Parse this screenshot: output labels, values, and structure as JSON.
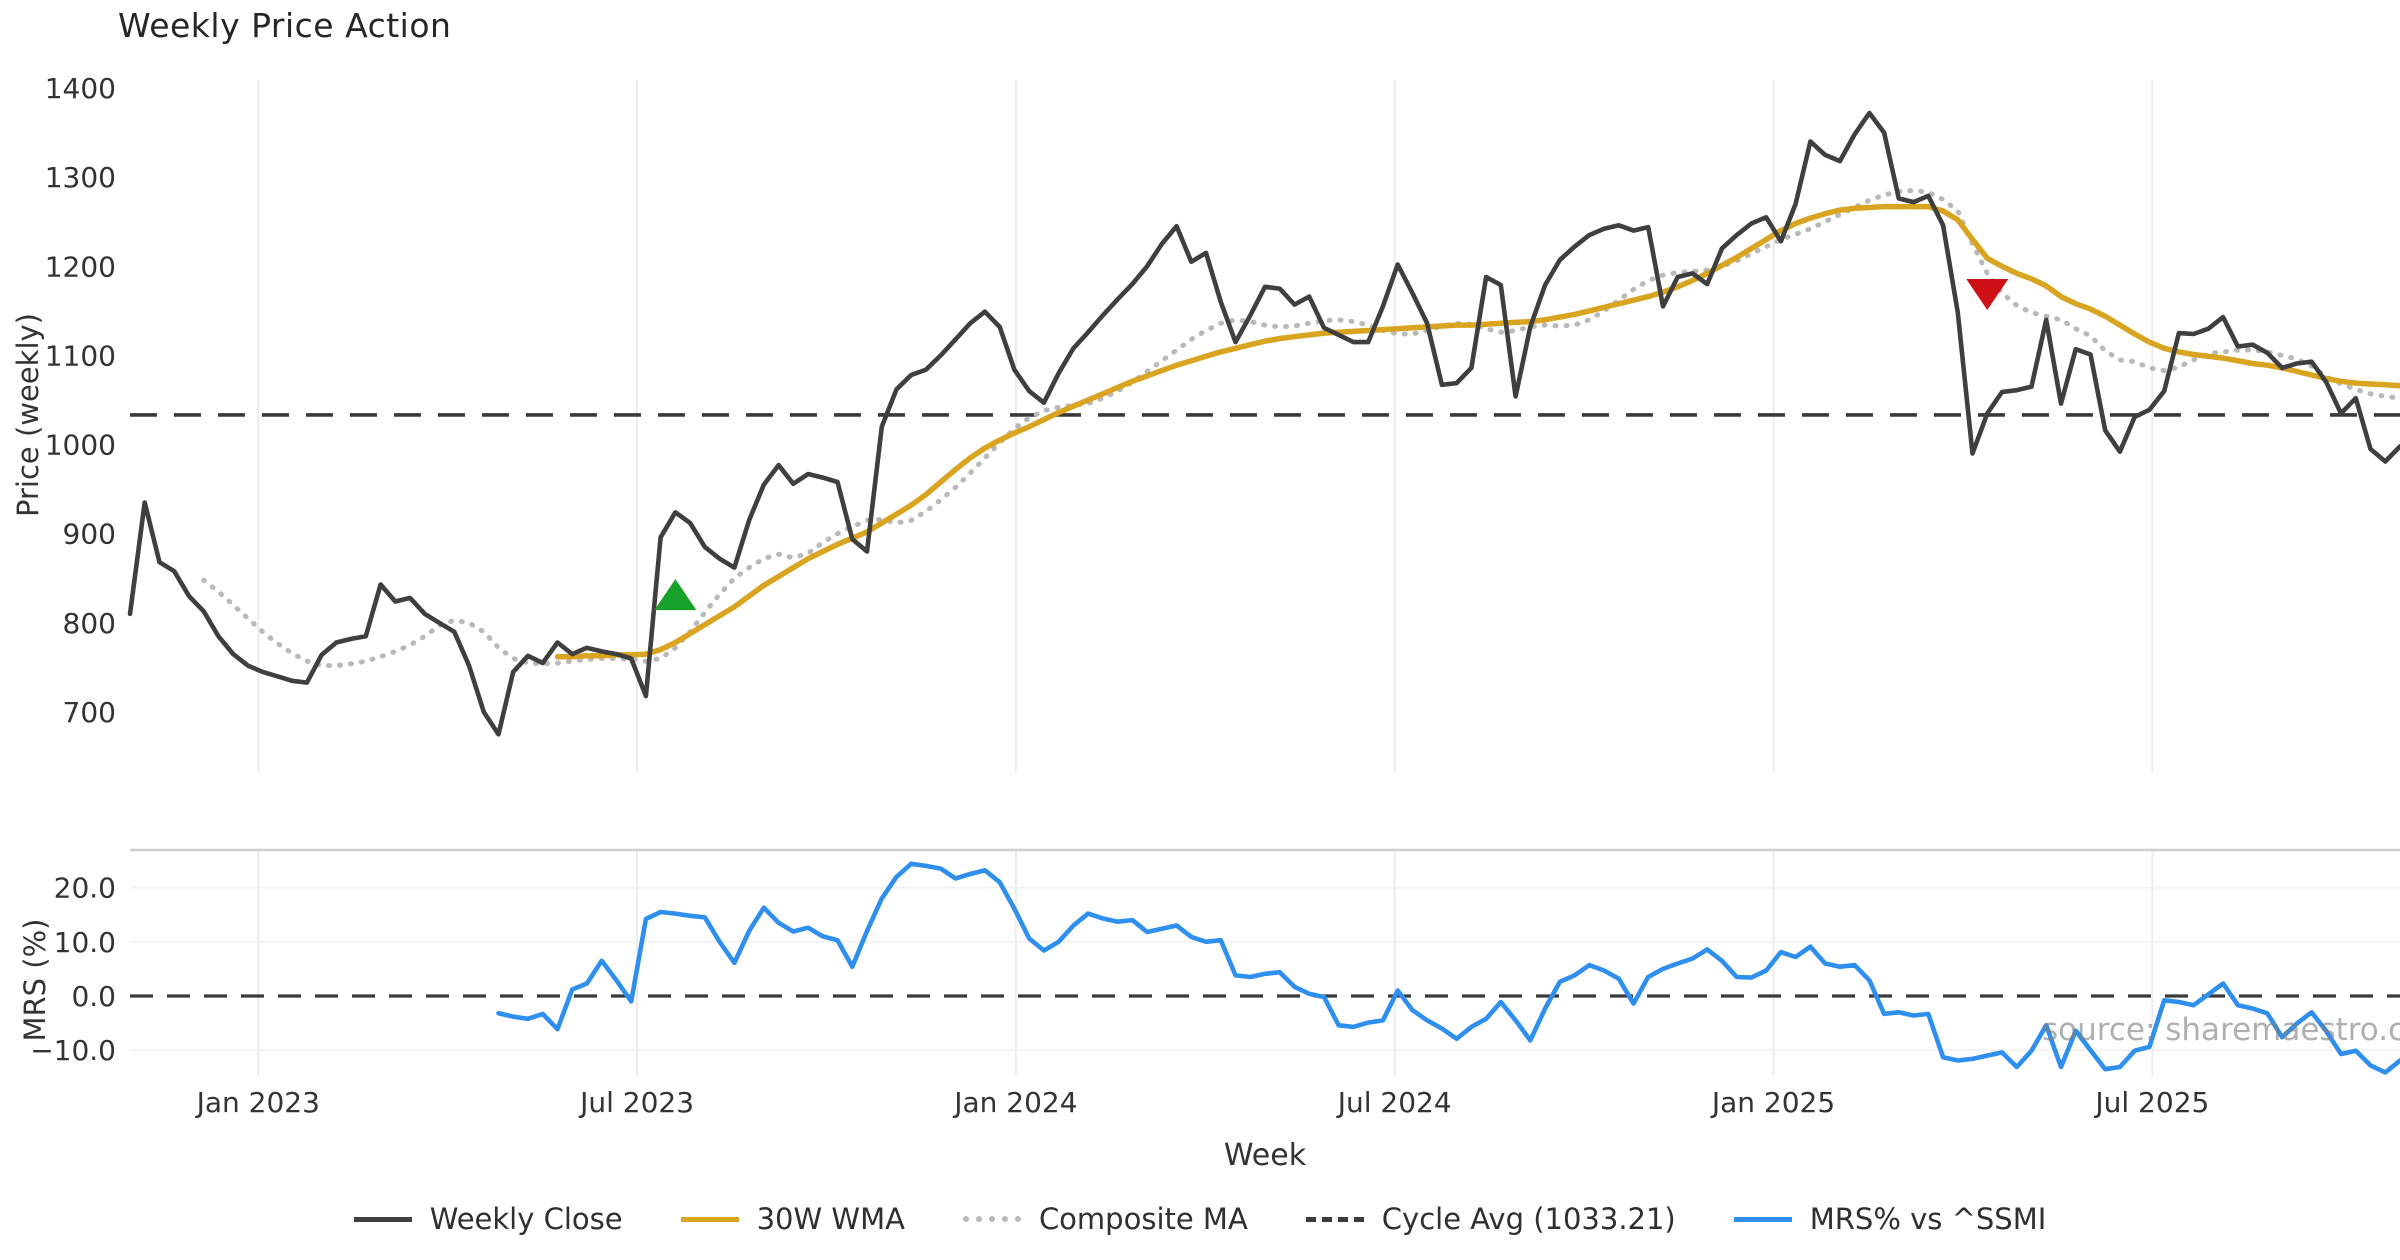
{
  "header": {
    "title": "Weekly Price Action"
  },
  "axes": {
    "price": {
      "label": "Price (weekly)",
      "ticks": [
        "1400",
        "1300",
        "1200",
        "1100",
        "1000",
        "900",
        "800",
        "700"
      ],
      "tick_values": [
        1400,
        1300,
        1200,
        1100,
        1000,
        900,
        800,
        700
      ]
    },
    "mrs": {
      "label": "MRS (%)",
      "ticks": [
        "20.0",
        "10.0",
        "0.0",
        "−10.0"
      ],
      "tick_values": [
        20,
        10,
        0,
        -10
      ]
    },
    "x": {
      "label": "Week",
      "ticks": [
        "Jan 2023",
        "Jul 2023",
        "Jan 2024",
        "Jul 2024",
        "Jan 2025",
        "Jul 2025"
      ],
      "tick_weeks": [
        8.7,
        34.4,
        60.1,
        85.8,
        111.5,
        137.2
      ]
    }
  },
  "watermark": "source: sharemaestro.com",
  "legend": [
    {
      "label": "Weekly Close",
      "color": "#3f3f3f",
      "style": "solid"
    },
    {
      "label": "30W WMA",
      "color": "#d9a521",
      "style": "solid"
    },
    {
      "label": "Composite MA",
      "color": "#b9b9b9",
      "style": "dotted"
    },
    {
      "label": "Cycle Avg (1033.21)",
      "color": "#3a3a3a",
      "style": "dashed"
    },
    {
      "label": "MRS% vs ^SSMI",
      "color": "#2e8fee",
      "style": "solid"
    }
  ],
  "colors": {
    "weekly_close": "#3f3f3f",
    "wma30": "#d9a521",
    "composite": "#b9b9b9",
    "cycle_avg": "#3a3a3a",
    "mrs": "#2e8fee",
    "buy_marker": "#16a12b",
    "sell_marker": "#cf1117",
    "grid": "#ececec",
    "grid_faint": "#f2f2f2",
    "panel_spine": "#cfcfcf",
    "tick_text": "#333333"
  },
  "chart_data": {
    "type": "line",
    "title": "Weekly Price Action",
    "xlabel": "Week",
    "x_unit": "weeks",
    "weeks_total": 154,
    "x_tick_labels": [
      "Jan 2023",
      "Jul 2023",
      "Jan 2024",
      "Jul 2024",
      "Jan 2025",
      "Jul 2025"
    ],
    "x_tick_weeks": [
      8.7,
      34.4,
      60.1,
      85.8,
      111.5,
      137.2
    ],
    "price_panel": {
      "ylabel": "Price (weekly)",
      "ylim": [
        633,
        1409
      ],
      "yticks": [
        1400,
        1300,
        1200,
        1100,
        1000,
        900,
        800,
        700
      ]
    },
    "mrs_panel": {
      "ylabel": "MRS (%)",
      "ylim": [
        -14.6,
        26.9
      ],
      "yticks": [
        20,
        10,
        0,
        -10
      ]
    },
    "cycle_avg": 1033.21,
    "mrs_zero_line": 0,
    "series": [
      {
        "name": "Weekly Close",
        "start_week": 0,
        "values": [
          810,
          935,
          868,
          858,
          830,
          813,
          785,
          765,
          752,
          745,
          740,
          735,
          733,
          764,
          778,
          782,
          785,
          843,
          824,
          828,
          810,
          800,
          790,
          752,
          700,
          675,
          745,
          763,
          755,
          778,
          765,
          772,
          768,
          765,
          760,
          718,
          896,
          924,
          912,
          885,
          872,
          862,
          915,
          955,
          977,
          956,
          967,
          963,
          958,
          894,
          880,
          1020,
          1062,
          1078,
          1084,
          1100,
          1118,
          1136,
          1149,
          1132,
          1084,
          1060,
          1047,
          1080,
          1108,
          1126,
          1145,
          1163,
          1180,
          1200,
          1225,
          1245,
          1205,
          1215,
          1160,
          1115,
          1145,
          1177,
          1175,
          1157,
          1166,
          1131,
          1123,
          1115,
          1115,
          1155,
          1202,
          1170,
          1136,
          1067,
          1069,
          1086,
          1188,
          1179,
          1054,
          1132,
          1179,
          1207,
          1222,
          1235,
          1242,
          1246,
          1240,
          1244,
          1155,
          1188,
          1192,
          1180,
          1220,
          1235,
          1248,
          1255,
          1228,
          1270,
          1340,
          1325,
          1318,
          1348,
          1372,
          1350,
          1276,
          1272,
          1279,
          1246,
          1148,
          990,
          1035,
          1059,
          1061,
          1065,
          1140,
          1046,
          1107,
          1101,
          1016,
          992,
          1031,
          1039,
          1060,
          1125,
          1124,
          1130,
          1143,
          1110,
          1112,
          1103,
          1086,
          1091,
          1093,
          1070,
          1035,
          1052,
          995,
          981,
          998
        ]
      },
      {
        "name": "30W WMA",
        "start_week": 29,
        "values": [
          762,
          762,
          763,
          763,
          764,
          764,
          765,
          770,
          778,
          788,
          798,
          808,
          818,
          830,
          842,
          852,
          862,
          872,
          880,
          888,
          895,
          902,
          912,
          922,
          932,
          944,
          958,
          972,
          985,
          996,
          1005,
          1013,
          1020,
          1028,
          1036,
          1043,
          1050,
          1057,
          1064,
          1071,
          1077,
          1083,
          1089,
          1094,
          1099,
          1104,
          1108,
          1112,
          1116,
          1119,
          1121,
          1123,
          1125,
          1126,
          1127,
          1128,
          1129,
          1130,
          1131,
          1132,
          1133,
          1134,
          1134,
          1135,
          1136,
          1137,
          1138,
          1140,
          1143,
          1146,
          1150,
          1154,
          1158,
          1162,
          1166,
          1171,
          1177,
          1184,
          1192,
          1201,
          1210,
          1220,
          1230,
          1240,
          1248,
          1254,
          1259,
          1263,
          1265,
          1266,
          1267,
          1267,
          1267,
          1267,
          1262,
          1252,
          1230,
          1209,
          1200,
          1192,
          1186,
          1178,
          1166,
          1158,
          1152,
          1144,
          1134,
          1124,
          1115,
          1108,
          1104,
          1101,
          1099,
          1097,
          1094,
          1091,
          1089,
          1086,
          1082,
          1078,
          1074,
          1071,
          1069,
          1068,
          1067,
          1066
        ]
      },
      {
        "name": "Composite MA",
        "start_week": 5,
        "values": [
          848,
          835,
          820,
          805,
          790,
          777,
          766,
          757,
          752,
          752,
          754,
          757,
          762,
          768,
          775,
          785,
          797,
          803,
          800,
          790,
          772,
          760,
          755,
          754,
          755,
          757,
          759,
          760,
          760,
          759,
          757,
          760,
          772,
          790,
          812,
          832,
          850,
          862,
          872,
          877,
          873,
          878,
          890,
          900,
          908,
          915,
          916,
          912,
          915,
          925,
          938,
          952,
          968,
          985,
          1002,
          1018,
          1030,
          1038,
          1042,
          1044,
          1046,
          1052,
          1060,
          1070,
          1082,
          1094,
          1106,
          1118,
          1128,
          1136,
          1140,
          1138,
          1134,
          1132,
          1133,
          1136,
          1139,
          1140,
          1138,
          1134,
          1128,
          1124,
          1124,
          1128,
          1133,
          1136,
          1135,
          1130,
          1126,
          1128,
          1132,
          1134,
          1133,
          1134,
          1140,
          1150,
          1162,
          1174,
          1184,
          1190,
          1193,
          1194,
          1196,
          1200,
          1206,
          1214,
          1222,
          1230,
          1236,
          1242,
          1250,
          1258,
          1266,
          1274,
          1280,
          1284,
          1285,
          1283,
          1275,
          1262,
          1225,
          1192,
          1170,
          1156,
          1148,
          1144,
          1140,
          1130,
          1122,
          1105,
          1095,
          1093,
          1086,
          1083,
          1087,
          1095,
          1102,
          1104,
          1106,
          1106,
          1104,
          1100,
          1096,
          1088,
          1076,
          1068,
          1062,
          1057,
          1054,
          1052
        ]
      },
      {
        "name": "MRS% vs ^SSMI",
        "start_week": 25,
        "panel": "mrs",
        "values": [
          -3.2,
          -3.8,
          -4.2,
          -3.3,
          -6.1,
          1.2,
          2.3,
          6.5,
          2.9,
          -1.0,
          14.2,
          15.5,
          15.2,
          14.8,
          14.5,
          10.0,
          6.1,
          12.0,
          16.3,
          13.5,
          11.9,
          12.6,
          11.0,
          10.3,
          5.4,
          12.0,
          18.0,
          22.0,
          24.4,
          24.0,
          23.5,
          21.7,
          22.5,
          23.2,
          21.0,
          16.1,
          10.6,
          8.4,
          10.0,
          13.0,
          15.2,
          14.3,
          13.7,
          14.0,
          11.8,
          12.4,
          13.0,
          10.9,
          10.0,
          10.3,
          3.8,
          3.5,
          4.1,
          4.4,
          1.7,
          0.4,
          -0.2,
          -5.4,
          -5.7,
          -4.9,
          -4.5,
          1.0,
          -2.6,
          -4.5,
          -6.0,
          -7.9,
          -5.7,
          -4.2,
          -1.1,
          -4.5,
          -8.2,
          -2.3,
          2.6,
          3.8,
          5.7,
          4.7,
          3.2,
          -1.4,
          3.5,
          5.0,
          6.0,
          6.9,
          8.6,
          6.5,
          3.5,
          3.4,
          4.7,
          8.1,
          7.2,
          9.1,
          6.0,
          5.4,
          5.7,
          2.9,
          -3.3,
          -3.0,
          -3.6,
          -3.3,
          -11.3,
          -11.9,
          -11.6,
          -11.0,
          -10.4,
          -13.1,
          -10.1,
          -5.4,
          -13.1,
          -6.4,
          -10.0,
          -13.5,
          -13.1,
          -10.1,
          -9.4,
          -0.8,
          -1.1,
          -1.7,
          0.3,
          2.3,
          -1.7,
          -2.3,
          -3.2,
          -7.6,
          -5.1,
          -3.0,
          -6.5,
          -10.7,
          -10.1,
          -12.8,
          -14.1,
          -11.9
        ]
      }
    ],
    "markers": [
      {
        "name": "buy-signal",
        "shape": "triangle-up",
        "week": 37,
        "value": 830,
        "color": "#16a12b"
      },
      {
        "name": "sell-signal",
        "shape": "triangle-down",
        "week": 126,
        "value": 1170,
        "color": "#cf1117"
      }
    ]
  }
}
